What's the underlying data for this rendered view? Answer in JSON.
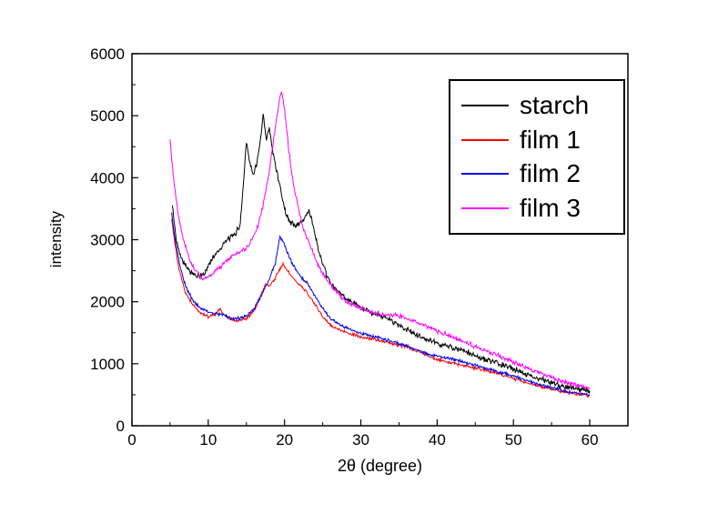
{
  "figure": {
    "background": "#ffffff",
    "plot_frame_color": "#000000"
  },
  "chart_data": {
    "type": "line",
    "title": "",
    "xlabel": "2θ (degree)",
    "ylabel": "intensity",
    "xlim": [
      0,
      65
    ],
    "ylim": [
      0,
      6000
    ],
    "x_ticks": [
      0,
      10,
      20,
      30,
      40,
      50,
      60
    ],
    "y_ticks": [
      0,
      1000,
      2000,
      3000,
      4000,
      5000,
      6000
    ],
    "grid": false,
    "legend_position": "top-right",
    "series": [
      {
        "name": "starch",
        "color": "#000000",
        "noise": 55,
        "points": [
          [
            5.3,
            3550
          ],
          [
            5.8,
            3000
          ],
          [
            6.5,
            2700
          ],
          [
            7.5,
            2500
          ],
          [
            8.5,
            2400
          ],
          [
            9.5,
            2450
          ],
          [
            10.5,
            2700
          ],
          [
            11.5,
            2850
          ],
          [
            12.5,
            3000
          ],
          [
            13.5,
            3080
          ],
          [
            14.2,
            3250
          ],
          [
            14.6,
            3900
          ],
          [
            15.0,
            4600
          ],
          [
            15.3,
            4350
          ],
          [
            15.8,
            4050
          ],
          [
            16.3,
            4200
          ],
          [
            16.8,
            4550
          ],
          [
            17.2,
            5000
          ],
          [
            17.6,
            4600
          ],
          [
            18.0,
            4800
          ],
          [
            18.4,
            4450
          ],
          [
            19.0,
            4100
          ],
          [
            19.5,
            3800
          ],
          [
            20.0,
            3500
          ],
          [
            20.6,
            3300
          ],
          [
            21.5,
            3220
          ],
          [
            22.5,
            3320
          ],
          [
            23.2,
            3480
          ],
          [
            23.8,
            3200
          ],
          [
            24.5,
            2800
          ],
          [
            25.5,
            2420
          ],
          [
            26.5,
            2220
          ],
          [
            28,
            2060
          ],
          [
            30,
            1900
          ],
          [
            32,
            1800
          ],
          [
            34,
            1700
          ],
          [
            36,
            1550
          ],
          [
            38,
            1420
          ],
          [
            40,
            1330
          ],
          [
            42,
            1260
          ],
          [
            44,
            1180
          ],
          [
            46,
            1080
          ],
          [
            48,
            1000
          ],
          [
            50,
            920
          ],
          [
            52,
            820
          ],
          [
            54,
            730
          ],
          [
            56,
            660
          ],
          [
            58,
            600
          ],
          [
            60,
            560
          ]
        ]
      },
      {
        "name": "film 1",
        "color": "#ff0000",
        "noise": 30,
        "points": [
          [
            5.2,
            3350
          ],
          [
            5.6,
            2950
          ],
          [
            6.2,
            2500
          ],
          [
            7.0,
            2150
          ],
          [
            8.0,
            1950
          ],
          [
            9.0,
            1820
          ],
          [
            10.0,
            1760
          ],
          [
            11.0,
            1800
          ],
          [
            11.5,
            1900
          ],
          [
            12.0,
            1790
          ],
          [
            13.0,
            1710
          ],
          [
            14.0,
            1690
          ],
          [
            15.0,
            1730
          ],
          [
            16.0,
            1850
          ],
          [
            17.0,
            2120
          ],
          [
            17.5,
            2300
          ],
          [
            18.0,
            2260
          ],
          [
            18.6,
            2330
          ],
          [
            19.2,
            2500
          ],
          [
            19.8,
            2600
          ],
          [
            20.4,
            2500
          ],
          [
            21.0,
            2400
          ],
          [
            22.0,
            2260
          ],
          [
            23.0,
            2150
          ],
          [
            24.0,
            1950
          ],
          [
            25.0,
            1760
          ],
          [
            26.0,
            1630
          ],
          [
            27.0,
            1560
          ],
          [
            28.0,
            1510
          ],
          [
            30.0,
            1430
          ],
          [
            32.0,
            1390
          ],
          [
            34.0,
            1330
          ],
          [
            36.0,
            1270
          ],
          [
            38.0,
            1170
          ],
          [
            40.0,
            1070
          ],
          [
            42.0,
            1010
          ],
          [
            44.0,
            960
          ],
          [
            46.0,
            900
          ],
          [
            48.0,
            840
          ],
          [
            50.0,
            760
          ],
          [
            52.0,
            680
          ],
          [
            54.0,
            620
          ],
          [
            56.0,
            560
          ],
          [
            58.0,
            510
          ],
          [
            60.0,
            490
          ]
        ]
      },
      {
        "name": "film 2",
        "color": "#0000ee",
        "noise": 30,
        "points": [
          [
            5.2,
            3420
          ],
          [
            5.6,
            3050
          ],
          [
            6.2,
            2620
          ],
          [
            7.0,
            2260
          ],
          [
            8.0,
            2010
          ],
          [
            9.0,
            1890
          ],
          [
            10.0,
            1830
          ],
          [
            11.0,
            1810
          ],
          [
            12.0,
            1790
          ],
          [
            13.0,
            1730
          ],
          [
            14.0,
            1730
          ],
          [
            15.0,
            1770
          ],
          [
            16.0,
            1890
          ],
          [
            17.0,
            2110
          ],
          [
            18.0,
            2360
          ],
          [
            18.8,
            2620
          ],
          [
            19.4,
            3050
          ],
          [
            19.9,
            2950
          ],
          [
            20.5,
            2760
          ],
          [
            21.0,
            2620
          ],
          [
            22.0,
            2420
          ],
          [
            23.0,
            2290
          ],
          [
            24.0,
            2090
          ],
          [
            25.0,
            1890
          ],
          [
            26.0,
            1730
          ],
          [
            27.0,
            1650
          ],
          [
            28.0,
            1590
          ],
          [
            30.0,
            1490
          ],
          [
            32.0,
            1430
          ],
          [
            34.0,
            1360
          ],
          [
            36.0,
            1290
          ],
          [
            38.0,
            1190
          ],
          [
            40.0,
            1120
          ],
          [
            42.0,
            1070
          ],
          [
            44.0,
            1010
          ],
          [
            46.0,
            940
          ],
          [
            48.0,
            870
          ],
          [
            50.0,
            800
          ],
          [
            52.0,
            720
          ],
          [
            54.0,
            650
          ],
          [
            56.0,
            590
          ],
          [
            58.0,
            530
          ],
          [
            60.0,
            500
          ]
        ]
      },
      {
        "name": "film 3",
        "color": "#ff00ff",
        "noise": 45,
        "points": [
          [
            5.0,
            4600
          ],
          [
            5.4,
            4050
          ],
          [
            6.0,
            3450
          ],
          [
            6.8,
            2980
          ],
          [
            7.6,
            2660
          ],
          [
            8.5,
            2460
          ],
          [
            9.3,
            2380
          ],
          [
            10.0,
            2400
          ],
          [
            11.0,
            2500
          ],
          [
            12.0,
            2600
          ],
          [
            13.0,
            2730
          ],
          [
            14.0,
            2790
          ],
          [
            15.0,
            2860
          ],
          [
            15.8,
            3010
          ],
          [
            16.5,
            3220
          ],
          [
            17.2,
            3560
          ],
          [
            18.0,
            4120
          ],
          [
            18.7,
            4720
          ],
          [
            19.3,
            5250
          ],
          [
            19.6,
            5400
          ],
          [
            20.0,
            5100
          ],
          [
            20.5,
            4520
          ],
          [
            21.0,
            4000
          ],
          [
            21.8,
            3520
          ],
          [
            22.5,
            3160
          ],
          [
            23.5,
            2860
          ],
          [
            24.5,
            2560
          ],
          [
            25.5,
            2360
          ],
          [
            26.5,
            2210
          ],
          [
            28.0,
            2010
          ],
          [
            30.0,
            1890
          ],
          [
            32.0,
            1810
          ],
          [
            33.5,
            1790
          ],
          [
            35.0,
            1770
          ],
          [
            36.5,
            1710
          ],
          [
            38.0,
            1630
          ],
          [
            40.0,
            1530
          ],
          [
            42.0,
            1430
          ],
          [
            44.0,
            1330
          ],
          [
            46.0,
            1230
          ],
          [
            48.0,
            1130
          ],
          [
            50.0,
            1030
          ],
          [
            52.0,
            930
          ],
          [
            54.0,
            830
          ],
          [
            56.0,
            740
          ],
          [
            58.0,
            665
          ],
          [
            60.0,
            610
          ]
        ]
      }
    ]
  }
}
